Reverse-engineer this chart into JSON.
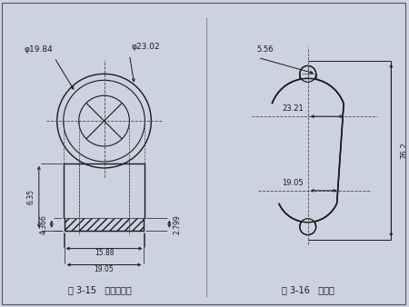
{
  "bg_color": "#cdd2e0",
  "line_color": "#1a1a1a",
  "dim_color": "#1a1a1a",
  "center_line_color": "#444444",
  "fig315": {
    "title": "图 3-15   铜环结构图",
    "dim_phi1": "φ19.84",
    "dim_phi2": "φ23.02",
    "dim_635": "6.35",
    "dim_4366": "4.366",
    "dim_2799": "2.799",
    "dim_1588": "15.88",
    "dim_1905": "19.05"
  },
  "fig316": {
    "title": "图 3-16   环架板",
    "dim_556": "5.56",
    "dim_2321": "23.21",
    "dim_1905": "19.05",
    "dim_762": "76.2"
  }
}
